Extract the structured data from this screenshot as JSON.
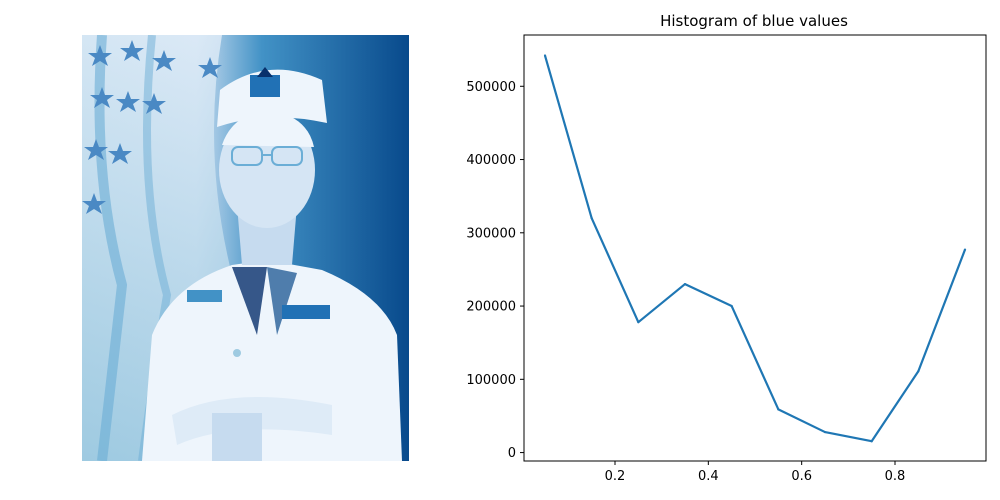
{
  "image_panel": {
    "colormap": "Blues",
    "colors": {
      "light": "#f7fbff",
      "mid": "#6baed6",
      "dark": "#08306b"
    }
  },
  "chart_data": {
    "type": "line",
    "title": "Histogram of blue values",
    "xlabel": "",
    "ylabel": "",
    "x": [
      0.05,
      0.15,
      0.25,
      0.35,
      0.45,
      0.55,
      0.65,
      0.75,
      0.85,
      0.95
    ],
    "series": [
      {
        "values": [
          542000,
          320000,
          178000,
          230000,
          200000,
          59000,
          28000,
          15500,
          111000,
          277000
        ],
        "color": "#1f77b4"
      }
    ],
    "xlim": [
      0.005,
      0.995
    ],
    "ylim": [
      -11500,
      570000
    ],
    "xticks": [
      0.2,
      0.4,
      0.6,
      0.8
    ],
    "xtick_labels": [
      "0.2",
      "0.4",
      "0.6",
      "0.8"
    ],
    "yticks": [
      0,
      100000,
      200000,
      300000,
      400000,
      500000
    ],
    "ytick_labels": [
      "0",
      "100000",
      "200000",
      "300000",
      "400000",
      "500000"
    ],
    "grid": false,
    "legend": "none"
  }
}
